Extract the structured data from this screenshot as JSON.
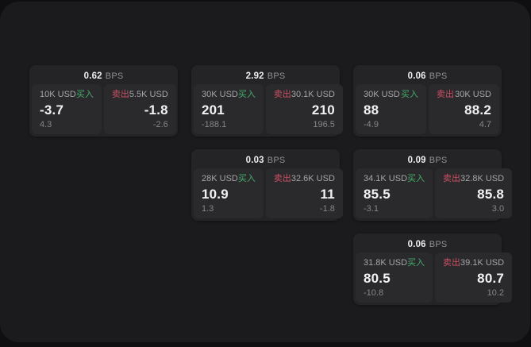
{
  "app": {
    "panel_bg": "#1b1b1d",
    "outer_bg": "#0f0f11"
  },
  "labels": {
    "bps": "BPS",
    "buy": "买入",
    "sell": "卖出"
  },
  "colors": {
    "buy": "#46ab6c",
    "sell": "#cb5064",
    "card_bg": "#242426",
    "tile_bg": "#2a2a2c"
  },
  "cards": [
    {
      "col": 1,
      "row": 1,
      "bps": "0.62",
      "buy": {
        "size": "10K USD",
        "price": "-3.7",
        "delta": "4.3"
      },
      "sell": {
        "size": "5.5K USD",
        "price": "-1.8",
        "delta": "-2.6"
      }
    },
    {
      "col": 2,
      "row": 1,
      "bps": "2.92",
      "buy": {
        "size": "30K USD",
        "price": "201",
        "delta": "-188.1"
      },
      "sell": {
        "size": "30.1K USD",
        "price": "210",
        "delta": "196.5"
      }
    },
    {
      "col": 2,
      "row": 2,
      "bps": "0.03",
      "buy": {
        "size": "28K USD",
        "price": "10.9",
        "delta": "1.3"
      },
      "sell": {
        "size": "32.6K USD",
        "price": "11",
        "delta": "-1.8"
      }
    },
    {
      "col": 3,
      "row": 1,
      "bps": "0.06",
      "buy": {
        "size": "30K USD",
        "price": "88",
        "delta": "-4.9"
      },
      "sell": {
        "size": "30K USD",
        "price": "88.2",
        "delta": "4.7"
      }
    },
    {
      "col": 3,
      "row": 2,
      "bps": "0.09",
      "buy": {
        "size": "34.1K USD",
        "price": "85.5",
        "delta": "-3.1"
      },
      "sell": {
        "size": "32.8K USD",
        "price": "85.8",
        "delta": "3.0"
      }
    },
    {
      "col": 3,
      "row": 3,
      "bps": "0.06",
      "buy": {
        "size": "31.8K USD",
        "price": "80.5",
        "delta": "-10.8"
      },
      "sell": {
        "size": "39.1K USD",
        "price": "80.7",
        "delta": "10.2"
      }
    }
  ]
}
